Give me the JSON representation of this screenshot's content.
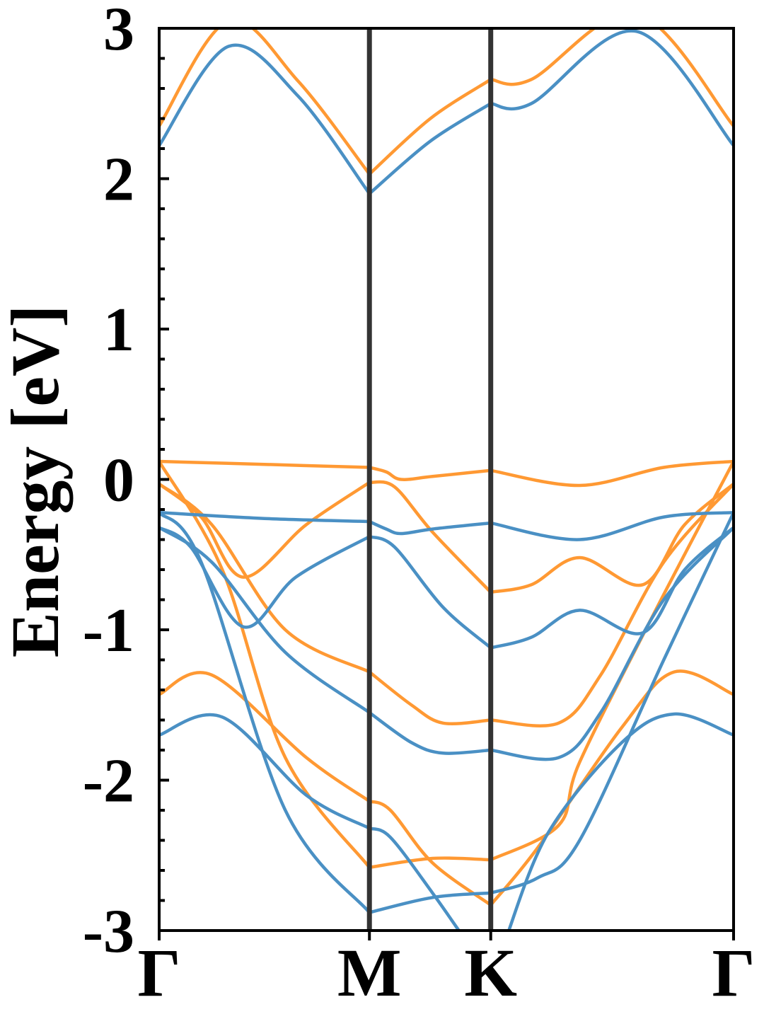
{
  "chart_data": {
    "type": "line",
    "ylabel": "Energy [eV]",
    "xlabel": "",
    "ylim": [
      -3,
      3
    ],
    "yticks": [
      {
        "value": 3,
        "label": "3"
      },
      {
        "value": 2,
        "label": "2"
      },
      {
        "value": 1,
        "label": "1"
      },
      {
        "value": 0,
        "label": "0"
      },
      {
        "value": -1,
        "label": "-1"
      },
      {
        "value": -2,
        "label": "-2"
      },
      {
        "value": -3,
        "label": "-3"
      }
    ],
    "kpoints": [
      {
        "label": "Γ",
        "x": 0
      },
      {
        "label": "M",
        "x": 1
      },
      {
        "label": "K",
        "x": 1.577
      },
      {
        "label": "Γ",
        "x": 2.732
      }
    ],
    "colors": {
      "blue": "#4a90c4",
      "orange": "#ff9933",
      "kline": "#333333"
    },
    "series": [
      {
        "color": "blue",
        "x": [
          0,
          0.33,
          0.66,
          1
        ],
        "y": [
          2.22,
          2.88,
          2.55,
          1.9
        ]
      },
      {
        "color": "blue",
        "x": [
          1,
          1.29,
          1.577
        ],
        "y": [
          1.9,
          2.25,
          2.5
        ]
      },
      {
        "color": "blue",
        "x": [
          1.577,
          1.77,
          2.27,
          2.732
        ],
        "y": [
          2.5,
          2.5,
          2.98,
          2.22
        ]
      },
      {
        "color": "orange",
        "x": [
          0,
          0.33,
          0.66,
          1
        ],
        "y": [
          2.35,
          3.05,
          2.65,
          2.03
        ]
      },
      {
        "color": "orange",
        "x": [
          1,
          1.29,
          1.577
        ],
        "y": [
          2.03,
          2.4,
          2.66
        ]
      },
      {
        "color": "orange",
        "x": [
          1.577,
          1.77,
          2.27,
          2.732
        ],
        "y": [
          2.66,
          2.66,
          3.1,
          2.35
        ]
      },
      {
        "color": "orange",
        "x": [
          0,
          0.5,
          1
        ],
        "y": [
          0.12,
          0.1,
          0.08
        ]
      },
      {
        "color": "orange",
        "x": [
          1,
          1.08,
          1.15,
          1.3,
          1.577
        ],
        "y": [
          0.08,
          0.05,
          0.0,
          0.02,
          0.06
        ]
      },
      {
        "color": "orange",
        "x": [
          1.577,
          2.0,
          2.4,
          2.732
        ],
        "y": [
          0.06,
          -0.04,
          0.08,
          0.12
        ]
      },
      {
        "color": "orange",
        "x": [
          0,
          0.2,
          0.4,
          0.7,
          1
        ],
        "y": [
          -0.03,
          -0.25,
          -0.65,
          -0.3,
          -0.02
        ]
      },
      {
        "color": "orange",
        "x": [
          1,
          1.12,
          1.3,
          1.577
        ],
        "y": [
          -0.02,
          -0.05,
          -0.35,
          -0.75
        ]
      },
      {
        "color": "orange",
        "x": [
          1.577,
          1.77,
          2.0,
          2.3,
          2.5,
          2.732
        ],
        "y": [
          -0.75,
          -0.7,
          -0.52,
          -0.7,
          -0.3,
          -0.03
        ]
      },
      {
        "color": "orange",
        "x": [
          0,
          0.25,
          0.6,
          1
        ],
        "y": [
          -0.03,
          -0.3,
          -1.0,
          -1.28
        ]
      },
      {
        "color": "orange",
        "x": [
          1,
          1.2,
          1.35,
          1.577
        ],
        "y": [
          -1.28,
          -1.5,
          -1.62,
          -1.6
        ]
      },
      {
        "color": "orange",
        "x": [
          1.577,
          1.9,
          2.1,
          2.4,
          2.732
        ],
        "y": [
          -1.6,
          -1.62,
          -1.3,
          -0.55,
          -0.03
        ]
      },
      {
        "color": "orange",
        "x": [
          0,
          0.25,
          0.7,
          1
        ],
        "y": [
          -1.43,
          -1.3,
          -1.85,
          -2.14
        ]
      },
      {
        "color": "orange",
        "x": [
          1,
          1.1,
          1.3,
          1.577
        ],
        "y": [
          -2.14,
          -2.2,
          -2.55,
          -2.83
        ]
      },
      {
        "color": "orange",
        "x": [
          1.577,
          1.8,
          2.2,
          2.45,
          2.732
        ],
        "y": [
          -2.83,
          -2.45,
          -1.65,
          -1.28,
          -1.43
        ]
      },
      {
        "color": "orange",
        "x": [
          0,
          0.3,
          0.6,
          1
        ],
        "y": [
          0.12,
          -0.6,
          -1.85,
          -2.58
        ]
      },
      {
        "color": "orange",
        "x": [
          1,
          1.3,
          1.577
        ],
        "y": [
          -2.58,
          -2.52,
          -2.53
        ]
      },
      {
        "color": "orange",
        "x": [
          1.577,
          1.9,
          2.0,
          2.35,
          2.732
        ],
        "y": [
          -2.53,
          -2.3,
          -1.88,
          -0.9,
          0.12
        ]
      },
      {
        "color": "blue",
        "x": [
          0,
          0.5,
          1
        ],
        "y": [
          -0.22,
          -0.26,
          -0.28
        ]
      },
      {
        "color": "blue",
        "x": [
          1,
          1.08,
          1.15,
          1.3,
          1.577
        ],
        "y": [
          -0.28,
          -0.33,
          -0.36,
          -0.33,
          -0.29
        ]
      },
      {
        "color": "blue",
        "x": [
          1.577,
          2.0,
          2.4,
          2.732
        ],
        "y": [
          -0.29,
          -0.4,
          -0.25,
          -0.22
        ]
      },
      {
        "color": "blue",
        "x": [
          0,
          0.15,
          0.4,
          0.65,
          1
        ],
        "y": [
          -0.32,
          -0.45,
          -0.98,
          -0.65,
          -0.38
        ]
      },
      {
        "color": "blue",
        "x": [
          1,
          1.12,
          1.35,
          1.577
        ],
        "y": [
          -0.38,
          -0.45,
          -0.85,
          -1.12
        ]
      },
      {
        "color": "blue",
        "x": [
          1.577,
          1.77,
          2.0,
          2.3,
          2.5,
          2.732
        ],
        "y": [
          -1.12,
          -1.05,
          -0.87,
          -1.02,
          -0.6,
          -0.32
        ]
      },
      {
        "color": "blue",
        "x": [
          0,
          0.25,
          0.6,
          1
        ],
        "y": [
          -0.32,
          -0.55,
          -1.15,
          -1.55
        ]
      },
      {
        "color": "blue",
        "x": [
          1,
          1.2,
          1.35,
          1.577
        ],
        "y": [
          -1.55,
          -1.75,
          -1.82,
          -1.8
        ]
      },
      {
        "color": "blue",
        "x": [
          1.577,
          1.9,
          2.1,
          2.4,
          2.732
        ],
        "y": [
          -1.8,
          -1.85,
          -1.55,
          -0.8,
          -0.32
        ]
      },
      {
        "color": "blue",
        "x": [
          0,
          0.3,
          0.7,
          1
        ],
        "y": [
          -1.7,
          -1.58,
          -2.1,
          -2.32
        ]
      },
      {
        "color": "blue",
        "x": [
          1,
          1.1,
          1.3,
          1.45
        ],
        "y": [
          -2.32,
          -2.38,
          -2.75,
          -3.05
        ]
      },
      {
        "color": "blue",
        "x": [
          1.65,
          1.85,
          2.2,
          2.45,
          2.732
        ],
        "y": [
          -3.05,
          -2.35,
          -1.75,
          -1.56,
          -1.7
        ]
      },
      {
        "color": "blue",
        "x": [
          0,
          0.2,
          0.6,
          1
        ],
        "y": [
          -0.22,
          -0.55,
          -2.2,
          -2.88
        ]
      },
      {
        "color": "blue",
        "x": [
          1,
          1.3,
          1.577
        ],
        "y": [
          -2.88,
          -2.78,
          -2.75
        ]
      },
      {
        "color": "blue",
        "x": [
          1.577,
          1.8,
          2.0,
          2.4,
          2.732
        ],
        "y": [
          -2.75,
          -2.65,
          -2.4,
          -1.2,
          -0.22
        ]
      }
    ]
  }
}
